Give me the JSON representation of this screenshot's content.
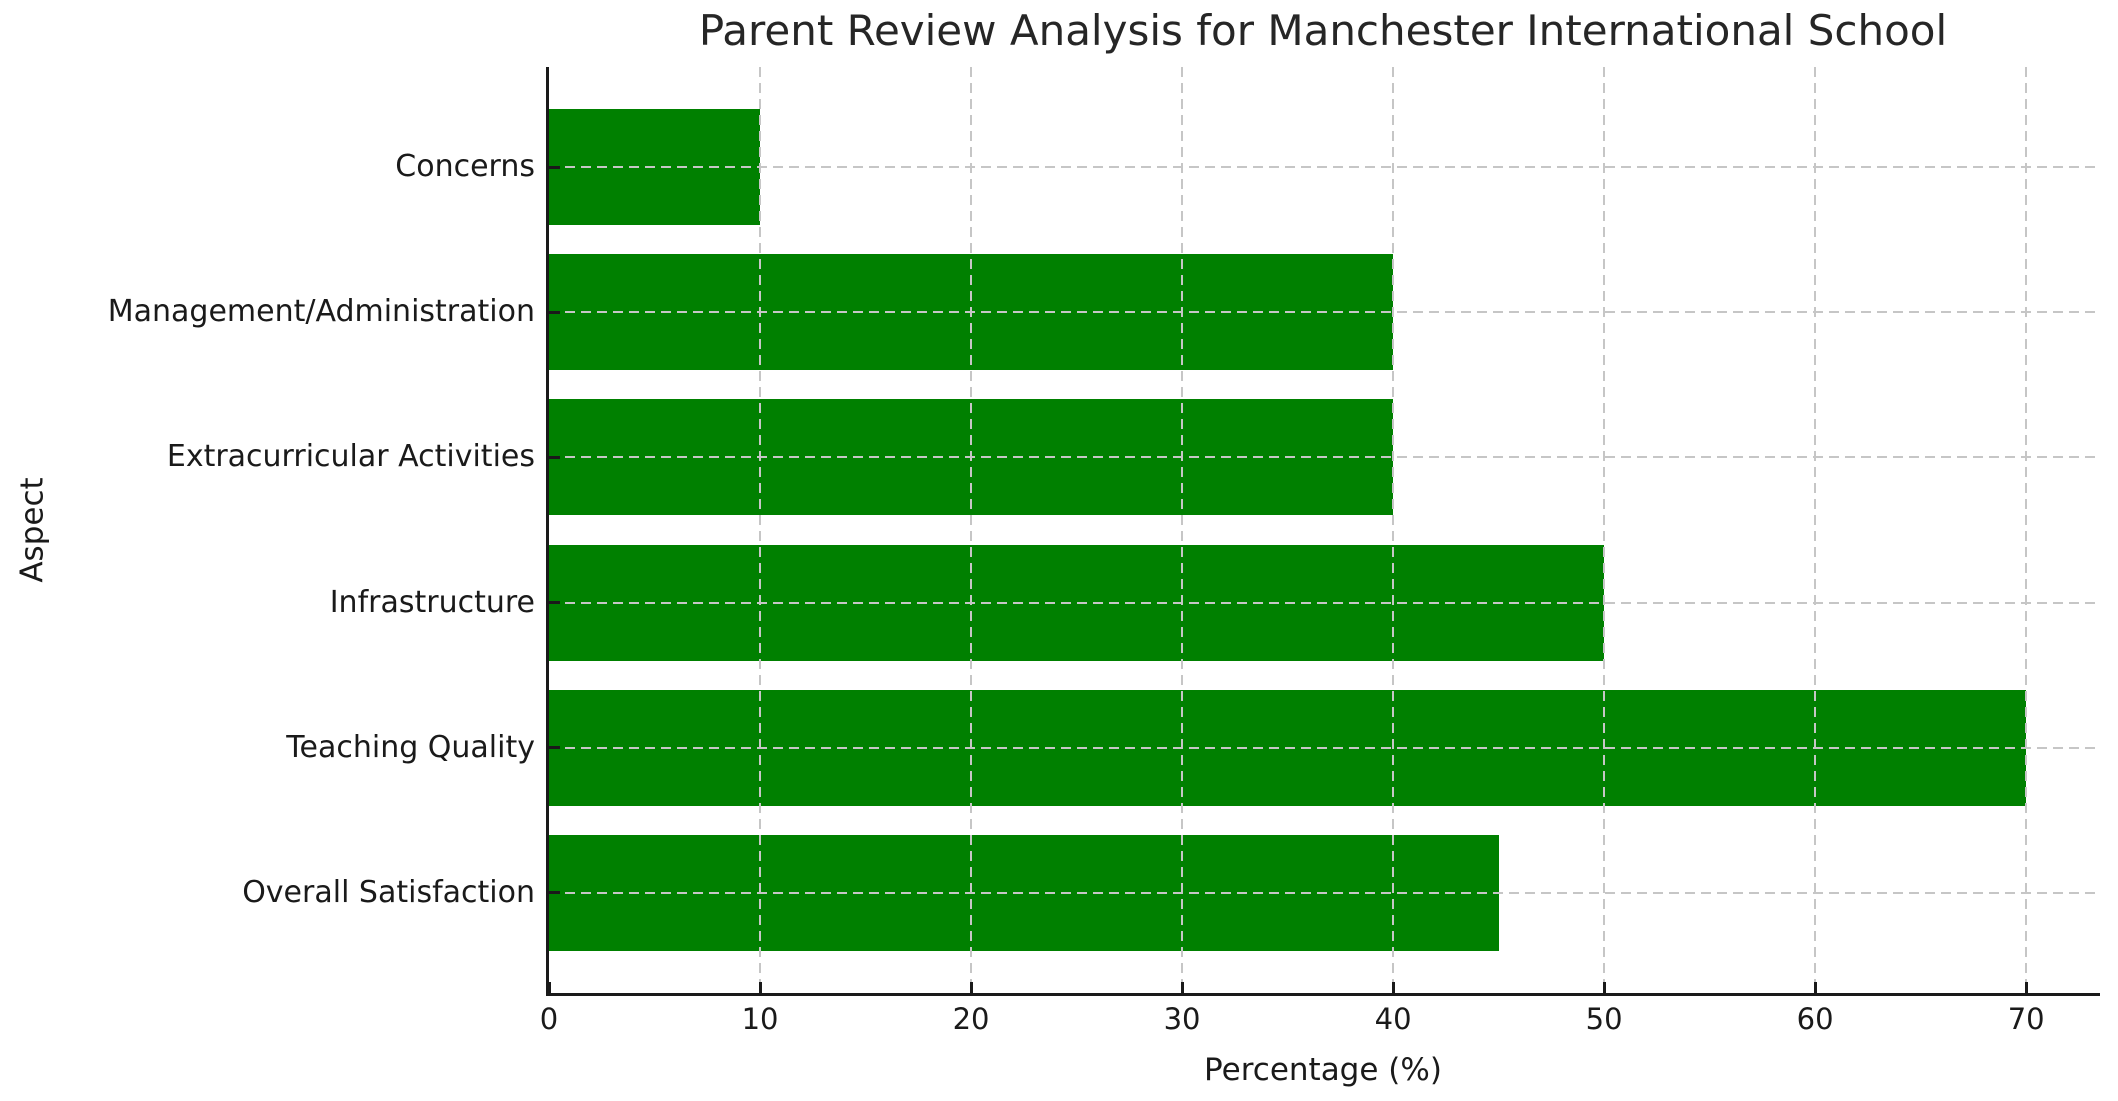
{
  "chart_data": {
    "type": "bar",
    "orientation": "horizontal",
    "title": "Parent Review Analysis for Manchester International School",
    "xlabel": "Percentage (%)",
    "ylabel": "Aspect",
    "categories": [
      "Concerns",
      "Management/Administration",
      "Extracurricular Activities",
      "Infrastructure",
      "Teaching Quality",
      "Overall Satisfaction"
    ],
    "values": [
      10,
      40,
      40,
      50,
      70,
      45
    ],
    "category_order_note": "listed top to bottom as displayed",
    "xlim": [
      0,
      73.5
    ],
    "ylim": [
      -0.69,
      5.69
    ],
    "xticks": [
      0,
      10,
      20,
      30,
      40,
      50,
      60,
      70
    ],
    "bar_thickness": 0.8,
    "bar_color": "#008000",
    "grid": {
      "visible": true,
      "style": "dashed",
      "color": "#c6c6c6",
      "drawn_over_bars": true
    },
    "spines": {
      "left": true,
      "bottom": true,
      "top": false,
      "right": false
    },
    "legend": null
  }
}
